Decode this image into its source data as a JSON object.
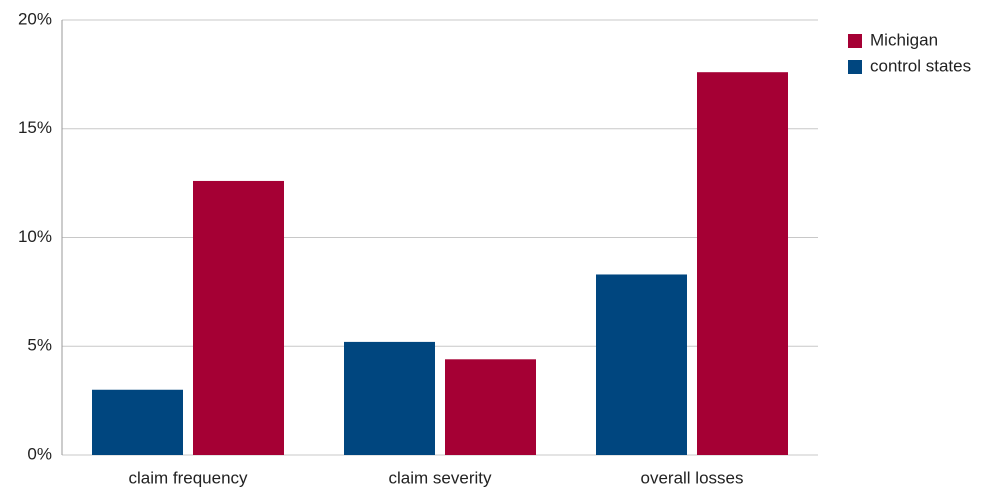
{
  "chart_data": {
    "type": "bar",
    "categories": [
      "claim frequency",
      "claim severity",
      "overall losses"
    ],
    "series": [
      {
        "name": "Michigan",
        "color": "#a50034",
        "values": [
          12.6,
          4.4,
          17.6
        ]
      },
      {
        "name": "control states",
        "color": "#00467f",
        "values": [
          3.0,
          5.2,
          8.3
        ]
      }
    ],
    "ylim": [
      0,
      20
    ],
    "yticks": [
      {
        "value": 0,
        "label": "0%"
      },
      {
        "value": 5,
        "label": "5%"
      },
      {
        "value": 10,
        "label": "10%"
      },
      {
        "value": 15,
        "label": "15%"
      },
      {
        "value": 20,
        "label": "20%"
      }
    ],
    "grid": true,
    "legend": "top-right"
  }
}
